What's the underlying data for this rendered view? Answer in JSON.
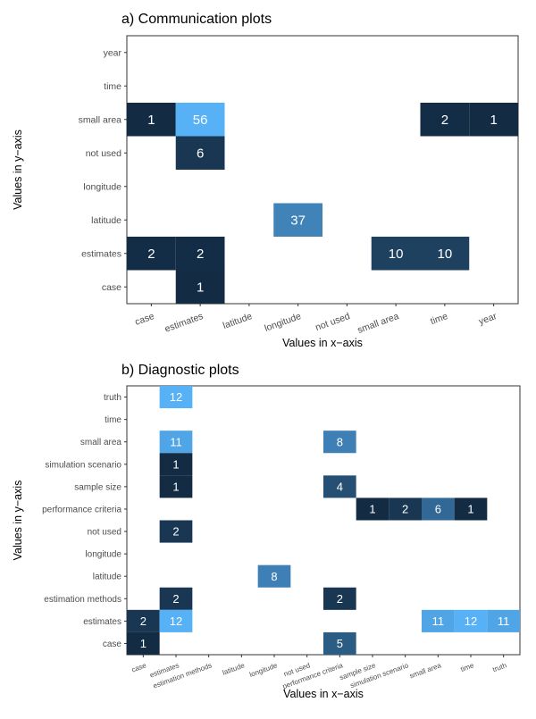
{
  "chart_data": [
    {
      "type": "heatmap",
      "title": "a) Communication plots",
      "xlabel": "Values in x−axis",
      "ylabel": "Values in y−axis",
      "x_categories": [
        "case",
        "estimates",
        "latitude",
        "longitude",
        "not used",
        "small area",
        "time",
        "year"
      ],
      "y_categories": [
        "case",
        "estimates",
        "latitude",
        "longitude",
        "not used",
        "small area",
        "time",
        "year"
      ],
      "color_scale": {
        "low": "#132b43",
        "high": "#56b1f7",
        "min": 1,
        "max": 56
      },
      "cells": [
        {
          "x": "case",
          "y": "small area",
          "value": 1
        },
        {
          "x": "estimates",
          "y": "small area",
          "value": 56
        },
        {
          "x": "time",
          "y": "small area",
          "value": 2
        },
        {
          "x": "year",
          "y": "small area",
          "value": 1
        },
        {
          "x": "estimates",
          "y": "not used",
          "value": 6
        },
        {
          "x": "longitude",
          "y": "latitude",
          "value": 37
        },
        {
          "x": "case",
          "y": "estimates",
          "value": 2
        },
        {
          "x": "estimates",
          "y": "estimates",
          "value": 2
        },
        {
          "x": "small area",
          "y": "estimates",
          "value": 10
        },
        {
          "x": "time",
          "y": "estimates",
          "value": 10
        },
        {
          "x": "estimates",
          "y": "case",
          "value": 1
        }
      ]
    },
    {
      "type": "heatmap",
      "title": "b) Diagnostic plots",
      "xlabel": "Values in x−axis",
      "ylabel": "Values in y−axis",
      "x_categories": [
        "case",
        "estimates",
        "estimation methods",
        "latitude",
        "longitude",
        "not used",
        "performance criteria",
        "sample size",
        "simulation scenario",
        "small area",
        "time",
        "truth"
      ],
      "y_categories": [
        "case",
        "estimates",
        "estimation methods",
        "latitude",
        "longitude",
        "not used",
        "performance criteria",
        "sample size",
        "simulation scenario",
        "small area",
        "time",
        "truth"
      ],
      "color_scale": {
        "low": "#132b43",
        "high": "#56b1f7",
        "min": 1,
        "max": 12
      },
      "cells": [
        {
          "x": "estimates",
          "y": "truth",
          "value": 12
        },
        {
          "x": "estimates",
          "y": "small area",
          "value": 11
        },
        {
          "x": "performance criteria",
          "y": "small area",
          "value": 8
        },
        {
          "x": "estimates",
          "y": "simulation scenario",
          "value": 1
        },
        {
          "x": "estimates",
          "y": "sample size",
          "value": 1
        },
        {
          "x": "performance criteria",
          "y": "sample size",
          "value": 4
        },
        {
          "x": "sample size",
          "y": "performance criteria",
          "value": 1
        },
        {
          "x": "simulation scenario",
          "y": "performance criteria",
          "value": 2
        },
        {
          "x": "small area",
          "y": "performance criteria",
          "value": 6
        },
        {
          "x": "time",
          "y": "performance criteria",
          "value": 1
        },
        {
          "x": "estimates",
          "y": "not used",
          "value": 2
        },
        {
          "x": "longitude",
          "y": "latitude",
          "value": 8
        },
        {
          "x": "estimates",
          "y": "estimation methods",
          "value": 2
        },
        {
          "x": "performance criteria",
          "y": "estimation methods",
          "value": 2
        },
        {
          "x": "case",
          "y": "estimates",
          "value": 2
        },
        {
          "x": "estimates",
          "y": "estimates",
          "value": 12
        },
        {
          "x": "small area",
          "y": "estimates",
          "value": 11
        },
        {
          "x": "time",
          "y": "estimates",
          "value": 12
        },
        {
          "x": "truth",
          "y": "estimates",
          "value": 11
        },
        {
          "x": "case",
          "y": "case",
          "value": 1
        },
        {
          "x": "performance criteria",
          "y": "case",
          "value": 5
        }
      ]
    }
  ]
}
